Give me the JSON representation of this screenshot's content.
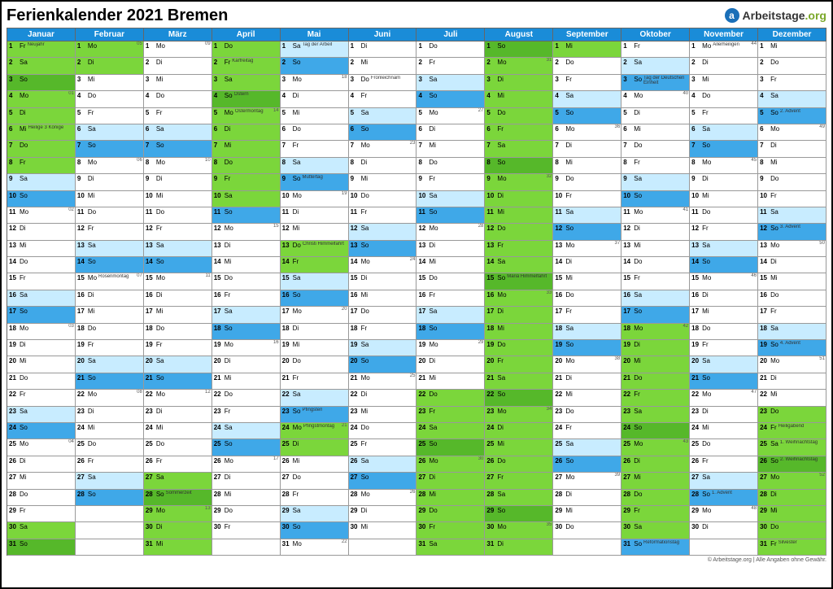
{
  "title": "Ferienkalender 2021 Bremen",
  "logo": {
    "brand": "Arbeitstage",
    "suffix": ".org"
  },
  "footer": "© Arbeitstage.org | Alle Angaben ohne Gewähr.",
  "colors": {
    "monthHead": "#1a8cd8",
    "sunday": "#3fa8e8",
    "saturday": "#c8ecff",
    "holiday": "#7bd63b",
    "holidayDark": "#56b82a",
    "note": "#333333"
  },
  "months": [
    "Januar",
    "Februar",
    "März",
    "April",
    "Mai",
    "Juni",
    "Juli",
    "August",
    "September",
    "Oktober",
    "November",
    "Dezember"
  ],
  "weekdaysShort": [
    "Mo",
    "Di",
    "Mi",
    "Do",
    "Fr",
    "Sa",
    "So"
  ],
  "startWeekday": [
    4,
    0,
    0,
    3,
    5,
    1,
    3,
    6,
    2,
    4,
    0,
    2
  ],
  "monthLen": [
    31,
    28,
    31,
    30,
    31,
    30,
    31,
    31,
    30,
    31,
    30,
    31
  ],
  "holidays": {
    "0": {
      "1": "Neujahr",
      "6": "Heilige 3 Könige"
    },
    "1": {
      "15": "Rosenmontag"
    },
    "2": {
      "28": "Sommerzeit"
    },
    "3": {
      "2": "Karfreitag",
      "4": "Ostern",
      "5": "Ostermontag",
      "19": ""
    },
    "4": {
      "1": "Tag der Arbeit",
      "9": "Muttertag",
      "13": "Christi Himmelfahrt",
      "23": "Pfingsten",
      "24": "Pfingstmontag"
    },
    "5": {
      "3": "Fronleichnam"
    },
    "7": {
      "15": "Mariä Himmelfahrt"
    },
    "9": {
      "3": "Tag der Deutschen Einheit",
      "31": "Reformationstag"
    },
    "10": {
      "1": "Allerheiligen",
      "28": "1. Advent"
    },
    "11": {
      "5": "2. Advent",
      "12": "3. Advent",
      "19": "4. Advent",
      "24": "Heiligabend",
      "25": "1. Weihnachtstag",
      "26": "2. Weihnachtstag",
      "31": "Silvester"
    }
  },
  "ferien": {
    "0": [
      [
        1,
        8
      ],
      [
        30,
        31
      ]
    ],
    "1": [
      [
        1,
        2
      ]
    ],
    "2": [
      [
        27,
        31
      ]
    ],
    "3": [
      [
        1,
        10
      ]
    ],
    "4": [
      [
        14,
        14
      ],
      [
        25,
        25
      ]
    ],
    "6": [
      [
        22,
        31
      ]
    ],
    "7": [
      [
        1,
        31
      ]
    ],
    "8": [
      [
        1,
        1
      ]
    ],
    "9": [
      [
        18,
        30
      ]
    ],
    "11": [
      [
        23,
        31
      ]
    ]
  },
  "weekNums": {
    "0": {
      "4": "01",
      "11": "02",
      "18": "03",
      "25": "04"
    },
    "1": {
      "1": "05",
      "8": "06",
      "15": "07",
      "22": "08"
    },
    "2": {
      "1": "09",
      "8": "10",
      "15": "11",
      "22": "12",
      "29": "13"
    },
    "3": {
      "5": "14",
      "12": "15",
      "19": "16",
      "26": "17"
    },
    "4": {
      "3": "18",
      "10": "19",
      "17": "20",
      "24": "21",
      "31": "22"
    },
    "5": {
      "7": "23",
      "14": "24",
      "21": "25",
      "28": "26"
    },
    "6": {
      "5": "27",
      "12": "28",
      "19": "29",
      "26": "30"
    },
    "7": {
      "2": "31",
      "9": "32",
      "16": "33",
      "23": "34",
      "30": "35"
    },
    "8": {
      "6": "36",
      "13": "37",
      "20": "38",
      "27": "39"
    },
    "9": {
      "4": "40",
      "11": "41",
      "18": "42",
      "25": "43"
    },
    "10": {
      "1": "44",
      "8": "45",
      "15": "46",
      "22": "47",
      "29": "48"
    },
    "11": {
      "6": "49",
      "13": "50",
      "20": "51",
      "27": "52"
    }
  }
}
